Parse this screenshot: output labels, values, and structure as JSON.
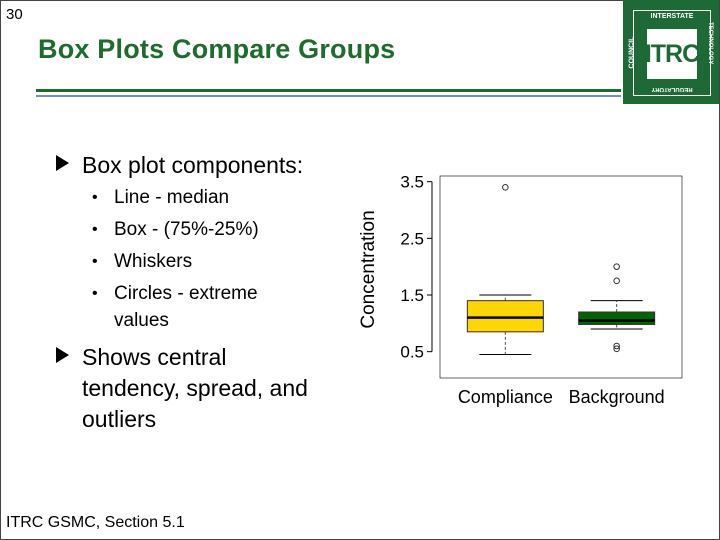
{
  "slide_number": "30",
  "title": "Box Plots Compare Groups",
  "logo": {
    "text": "ITRC",
    "top": "INTERSTATE",
    "right": "TECHNOLOGY",
    "bottom": "REGULATORY",
    "left": "COUNCIL"
  },
  "bullets": [
    {
      "text": "Box plot components:",
      "sub": [
        "Line - median",
        "Box - (75%-25%)",
        "Whiskers",
        "Circles - extreme",
        "values"
      ]
    },
    {
      "lines": [
        "Shows central",
        "tendency, spread, and",
        "outliers"
      ]
    }
  ],
  "footer": "ITRC GSMC, Section 5.1",
  "chart_data": {
    "type": "box",
    "ylabel": "Concentration",
    "ylim": [
      0.3,
      3.6
    ],
    "yticks": [
      "0.5",
      "1.5",
      "2.5",
      "3.5"
    ],
    "categories": [
      "Compliance",
      "Background"
    ],
    "colors": [
      "#ffd700",
      "#006400"
    ],
    "groups": [
      {
        "name": "Compliance",
        "whisker_low": 0.45,
        "q1": 0.85,
        "median": 1.1,
        "q3": 1.4,
        "whisker_high": 1.5,
        "outliers": [
          3.4
        ]
      },
      {
        "name": "Background",
        "whisker_low": 0.9,
        "q1": 0.98,
        "median": 1.05,
        "q3": 1.2,
        "whisker_high": 1.4,
        "outliers": [
          2.0,
          1.75,
          0.55,
          0.6
        ]
      }
    ]
  }
}
